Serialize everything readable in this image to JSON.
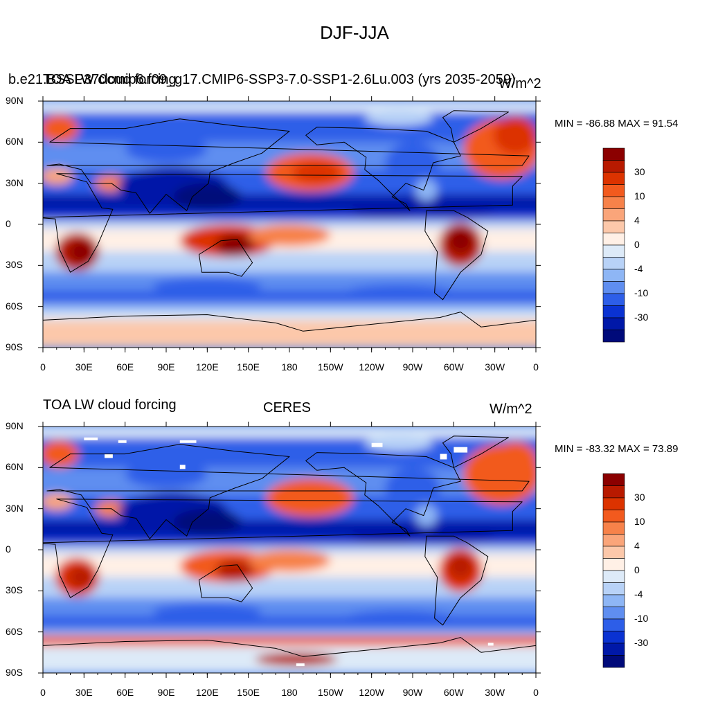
{
  "main_title": "DJF-JJA",
  "panels": [
    {
      "left_title": "TOA LW cloud forcing",
      "case_title": "b.e21.BSSP370cmip6.f09_g17.CMIP6-SSP3-7.0-SSP1-2.6Lu.003 (yrs 2035-2059)",
      "units": "W/m^2",
      "stats": "MIN = -86.88 MAX =  91.54"
    },
    {
      "left_title": "TOA LW cloud forcing",
      "case_title": "CERES",
      "units": "W/m^2",
      "stats": "MIN = -83.32 MAX =  73.89"
    }
  ],
  "lat_labels": [
    "90N",
    "60N",
    "30N",
    "0",
    "30S",
    "60S",
    "90S"
  ],
  "lon_labels": [
    "0",
    "30E",
    "60E",
    "90E",
    "120E",
    "150E",
    "180",
    "150W",
    "120W",
    "90W",
    "60W",
    "30W",
    "0"
  ],
  "colorbar": {
    "labels": [
      "30",
      "10",
      "4",
      "0",
      "-4",
      "-10",
      "-30"
    ],
    "colors": [
      "#8b0000",
      "#b81a00",
      "#dc3300",
      "#f25a1e",
      "#f7824a",
      "#faa57a",
      "#fcc8aa",
      "#fff0e6",
      "#ddeaf8",
      "#b8d2f7",
      "#8eb6f5",
      "#5f8ef0",
      "#2d5ee8",
      "#0a32d2",
      "#0018a8",
      "#000a7a"
    ]
  },
  "colors": {
    "land_outline": "#000000",
    "missing": "#ffffff"
  },
  "chart_data": [
    {
      "type": "heatmap",
      "title": "DJF-JJA",
      "xlabel": "",
      "ylabel": "",
      "xlim": [
        0,
        360
      ],
      "ylim": [
        -90,
        90
      ],
      "field": "TOA LW cloud forcing difference (W/m^2)",
      "min": -86.88,
      "max": 91.54,
      "levels": [
        -40,
        -30,
        -20,
        -10,
        -8,
        -6,
        -4,
        -2,
        0,
        2,
        4,
        6,
        8,
        10,
        20,
        30,
        40
      ]
    },
    {
      "type": "heatmap",
      "title": "CERES",
      "xlabel": "",
      "ylabel": "",
      "xlim": [
        0,
        360
      ],
      "ylim": [
        -90,
        90
      ],
      "field": "TOA LW cloud forcing difference (W/m^2)",
      "min": -83.32,
      "max": 73.89,
      "levels": [
        -40,
        -30,
        -20,
        -10,
        -8,
        -6,
        -4,
        -2,
        0,
        2,
        4,
        6,
        8,
        10,
        20,
        30,
        40
      ]
    }
  ]
}
